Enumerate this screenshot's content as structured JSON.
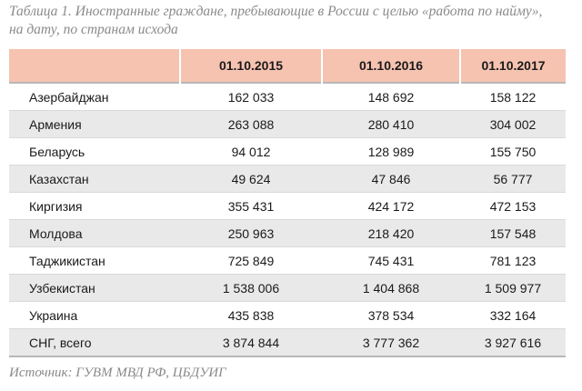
{
  "caption": {
    "line1": "Таблица 1. Иностранные граждане, пребывающие в России с целью «работа по найму»,",
    "line2": "на дату, по странам исхода"
  },
  "table": {
    "headers": [
      "",
      "01.10.2015",
      "01.10.2016",
      "01.10.2017"
    ],
    "rows": [
      {
        "name": "Азербайджан",
        "v2015": "162 033",
        "v2016": "148 692",
        "v2017": "158 122"
      },
      {
        "name": "Армения",
        "v2015": "263 088",
        "v2016": "280 410",
        "v2017": "304 002"
      },
      {
        "name": "Беларусь",
        "v2015": "94 012",
        "v2016": "128 989",
        "v2017": "155 750"
      },
      {
        "name": "Казахстан",
        "v2015": "49 624",
        "v2016": "47 846",
        "v2017": "56 777"
      },
      {
        "name": "Киргизия",
        "v2015": "355 431",
        "v2016": "424 172",
        "v2017": "472 153"
      },
      {
        "name": "Молдова",
        "v2015": "250 963",
        "v2016": "218 420",
        "v2017": "157 548"
      },
      {
        "name": "Таджикистан",
        "v2015": "725 849",
        "v2016": "745 431",
        "v2017": "781 123"
      },
      {
        "name": "Узбекистан",
        "v2015": "1 538 006",
        "v2016": "1 404 868",
        "v2017": "1 509 977"
      },
      {
        "name": "Украина",
        "v2015": "435 838",
        "v2016": "378 534",
        "v2017": "332 164"
      },
      {
        "name": "СНГ, всего",
        "v2015": "3 874 844",
        "v2016": "3 777 362",
        "v2017": "3 927 616"
      }
    ]
  },
  "source": "Источник: ГУВМ МВД РФ, ЦБДУИГ",
  "colors": {
    "header_bg": "#f6c3b1",
    "shaded_row_bg": "#e9e9e9",
    "caption_text": "#8a8a8a"
  }
}
